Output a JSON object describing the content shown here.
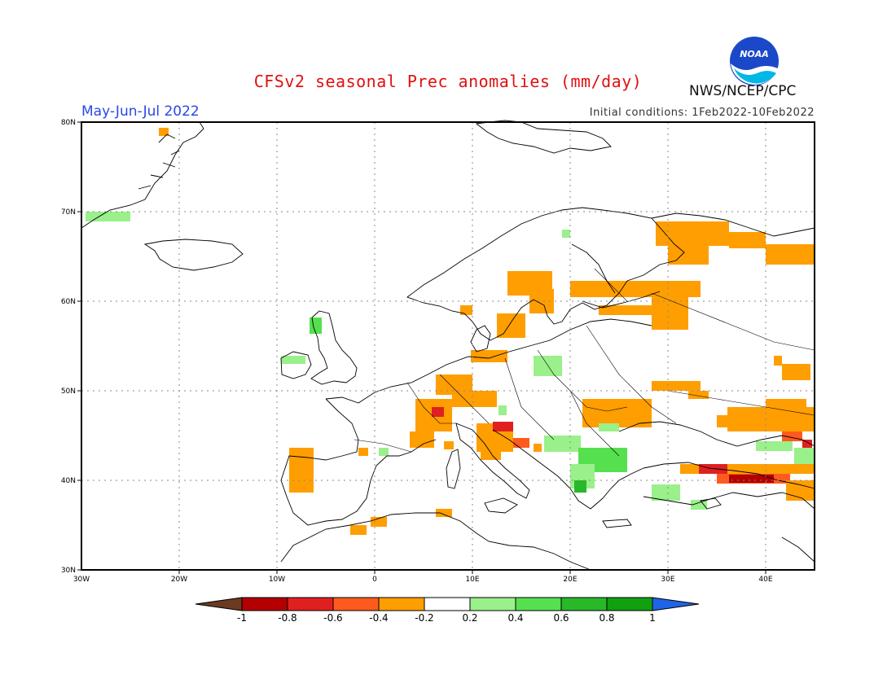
{
  "header": {
    "title": "CFSv2 seasonal Prec anomalies (mm/day)",
    "period": "May-Jun-Jul 2022",
    "initial_conditions": "Initial conditions: 1Feb2022-10Feb2022",
    "org": "NWS/NCEP/CPC",
    "logo_text": "NOAA"
  },
  "map": {
    "lon_range": [
      -30,
      45
    ],
    "lat_range": [
      30,
      80
    ],
    "lon_ticks": [
      "30W",
      "20W",
      "10W",
      "0",
      "10E",
      "20E",
      "30E",
      "40E"
    ],
    "lat_ticks": [
      "80N",
      "70N",
      "60N",
      "50N",
      "40N",
      "30N"
    ],
    "grid_style": "dotted"
  },
  "legend": {
    "ticks": [
      "-1",
      "-0.8",
      "-0.6",
      "-0.4",
      "-0.2",
      "0.2",
      "0.4",
      "0.6",
      "0.8",
      "1"
    ],
    "colors": [
      "#6b3a22",
      "#b40000",
      "#e02020",
      "#ff5a1e",
      "#ff9e00",
      "#ffffff",
      "#9af08a",
      "#55e050",
      "#28b828",
      "#10a010",
      "#1e64e6"
    ]
  },
  "anomaly_colors": {
    "neg_0_2": "#ff9e00",
    "neg_0_4": "#ff5a1e",
    "neg_0_6": "#e02020",
    "neg_0_8": "#b40000",
    "pos_0_2": "#9af08a",
    "pos_0_4": "#55e050",
    "pos_0_6": "#28b828"
  }
}
